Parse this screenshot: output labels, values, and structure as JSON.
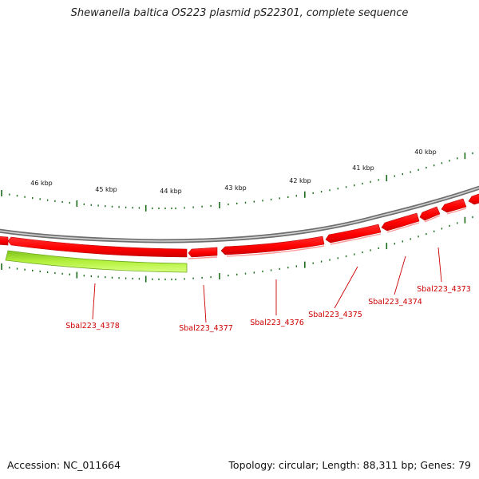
{
  "title": "Shewanella baltica OS223 plasmid pS22301, complete sequence",
  "footer": {
    "accession": "Accession: NC_011664",
    "summary": "Topology: circular; Length: 88,311 bp; Genes: 79"
  },
  "ruler": {
    "labels": [
      "40 kbp",
      "41 kbp",
      "42 kbp",
      "43 kbp",
      "44 kbp",
      "45 kbp",
      "46 kbp"
    ]
  },
  "genes": [
    {
      "name": "Sbal223_4373"
    },
    {
      "name": "Sbal223_4374"
    },
    {
      "name": "Sbal223_4375"
    },
    {
      "name": "Sbal223_4376"
    },
    {
      "name": "Sbal223_4377"
    },
    {
      "name": "Sbal223_4378"
    }
  ],
  "colors": {
    "backbone": "#8c8c8c",
    "gene_red": "#ff0000",
    "gene_red_dark": "#c80000",
    "gene_green": "#a8ee30",
    "gene_green_dark": "#5e9e1a",
    "tick": "#1a6b1a",
    "label_red": "#cc0000"
  }
}
